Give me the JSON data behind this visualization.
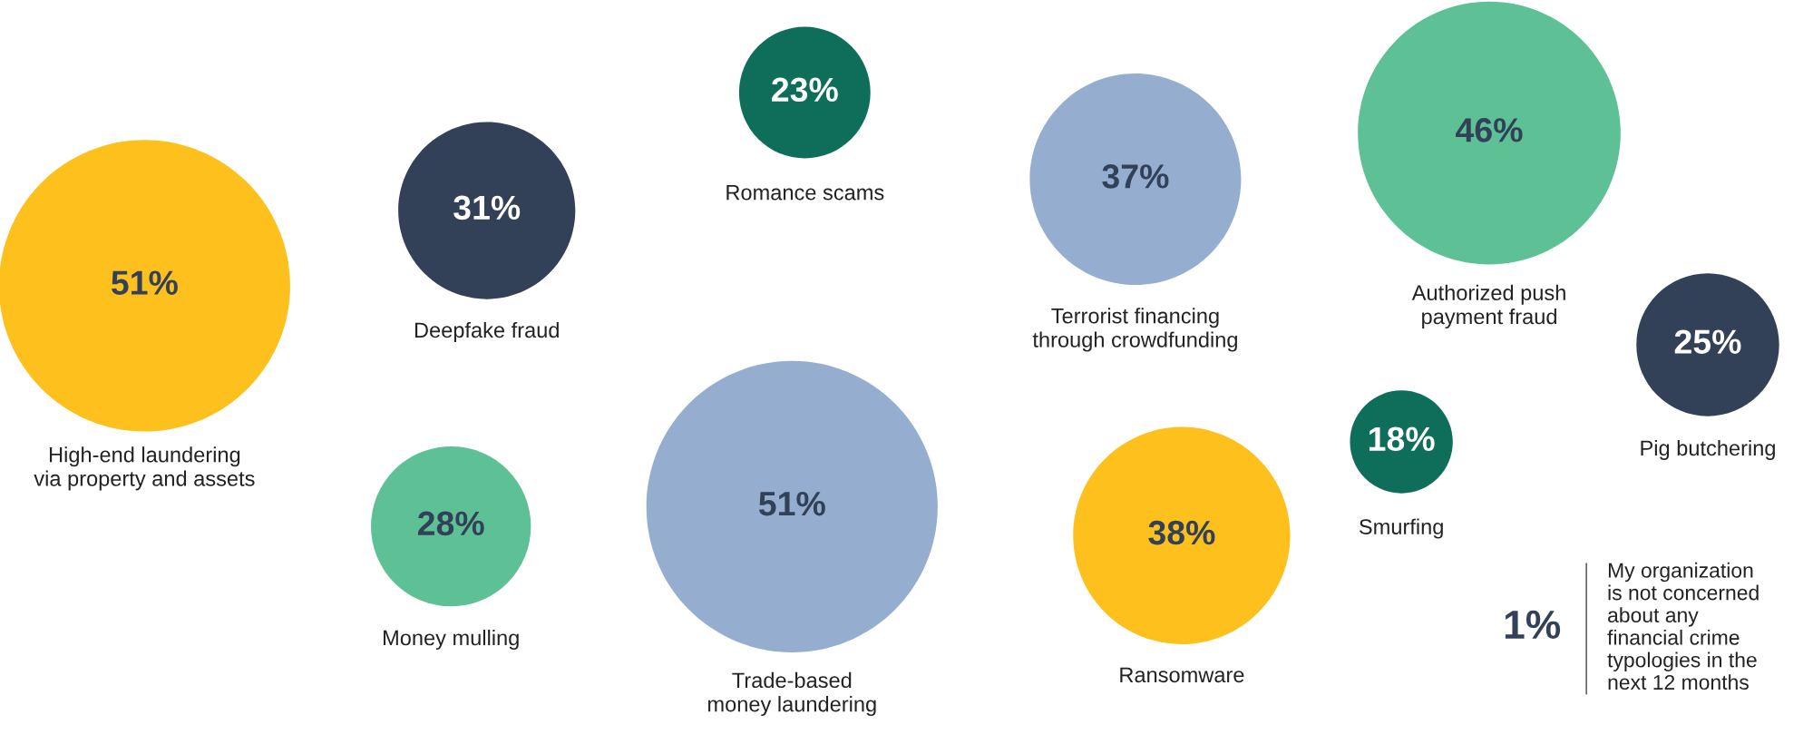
{
  "chart_data": {
    "type": "other",
    "categories": [
      "High-end laundering\nvia property and assets",
      "Deepfake fraud",
      "Romance scams",
      "Terrorist financing\nthrough crowdfunding",
      "Authorized push\npayment fraud",
      "Pig butchering",
      "Money mulling",
      "Trade-based\nmoney laundering",
      "Ransomware",
      "Smurfing"
    ],
    "values": [
      51,
      31,
      23,
      37,
      46,
      25,
      28,
      51,
      38,
      18
    ],
    "value_labels": [
      "51%",
      "31%",
      "23%",
      "37%",
      "46%",
      "25%",
      "28%",
      "51%",
      "38%",
      "18%"
    ],
    "colors": [
      "#fdc01d",
      "#324158",
      "#0e6e5a",
      "#95aecf",
      "#5ec196",
      "#324158",
      "#5ec196",
      "#95aecf",
      "#fdc01d",
      "#0e6e5a"
    ],
    "annotations": [
      "1%",
      "My organization\nis not concerned\nabout any\nfinancial crime\ntypologies in the\nnext 12 months"
    ]
  }
}
